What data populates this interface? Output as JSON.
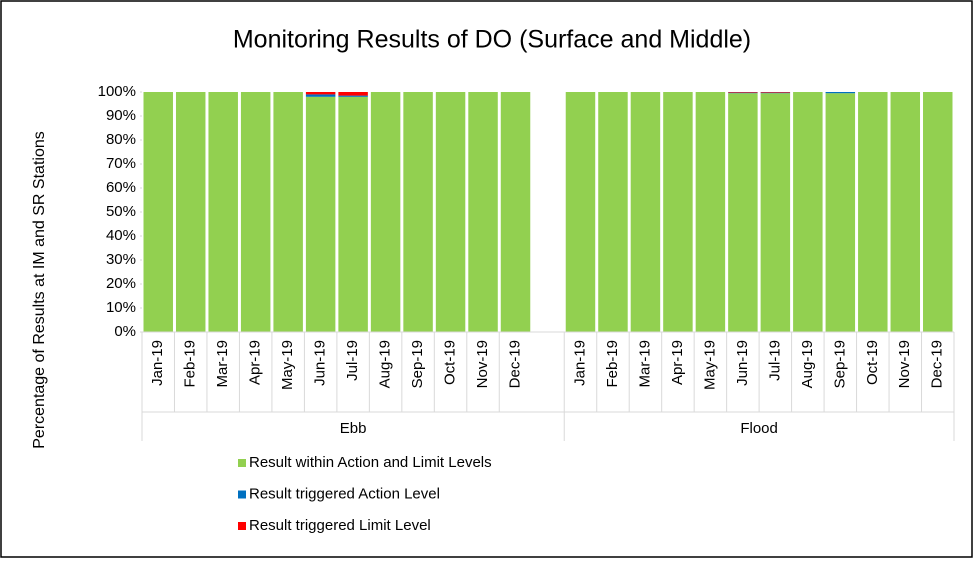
{
  "chart_data": {
    "type": "stacked-bar",
    "title": "Monitoring Results of DO (Surface and Middle)",
    "y_label": "Percentage of Results at IM and SR Stations",
    "categories": [
      "Jan-19",
      "Feb-19",
      "Mar-19",
      "Apr-19",
      "May-19",
      "Jun-19",
      "Jul-19",
      "Aug-19",
      "Sep-19",
      "Oct-19",
      "Nov-19",
      "Dec-19",
      null,
      "Jan-19",
      "Feb-19",
      "Mar-19",
      "Apr-19",
      "May-19",
      "Jun-19",
      "Jul-19",
      "Aug-19",
      "Sep-19",
      "Oct-19",
      "Nov-19",
      "Dec-19"
    ],
    "groups": [
      "Ebb",
      "Flood"
    ],
    "series": [
      {
        "name": "Result within Action and Limit Levels",
        "color": "#92d050",
        "values": [
          100,
          100,
          100,
          100,
          100,
          98,
          98,
          100,
          100,
          100,
          100,
          100,
          null,
          100,
          100,
          100,
          100,
          100,
          99.5,
          99.5,
          100,
          99.5,
          100,
          100,
          100
        ]
      },
      {
        "name": "Result triggered Action Level",
        "color": "#0070c0",
        "values": [
          0,
          0,
          0,
          0,
          0,
          1,
          0.5,
          0,
          0,
          0,
          0,
          0,
          null,
          0,
          0,
          0,
          0,
          0,
          0.25,
          0.25,
          0,
          0.5,
          0,
          0,
          0
        ]
      },
      {
        "name": "Result triggered Limit Level",
        "color": "#ff0000",
        "values": [
          0,
          0,
          0,
          0,
          0,
          1,
          1.5,
          0,
          0,
          0,
          0,
          0,
          null,
          0,
          0,
          0,
          0,
          0,
          0.25,
          0.25,
          0,
          0,
          0,
          0,
          0
        ]
      }
    ],
    "ylim": [
      0,
      100
    ],
    "yticks": [
      {
        "value": 0,
        "label": "0%"
      },
      {
        "value": 10,
        "label": "10%"
      },
      {
        "value": 20,
        "label": "20%"
      },
      {
        "value": 30,
        "label": "30%"
      },
      {
        "value": 40,
        "label": "40%"
      },
      {
        "value": 50,
        "label": "50%"
      },
      {
        "value": 60,
        "label": "60%"
      },
      {
        "value": 70,
        "label": "70%"
      },
      {
        "value": 80,
        "label": "80%"
      },
      {
        "value": 90,
        "label": "90%"
      },
      {
        "value": 100,
        "label": "100%"
      }
    ],
    "grid": false,
    "legend": "bottom-left"
  }
}
